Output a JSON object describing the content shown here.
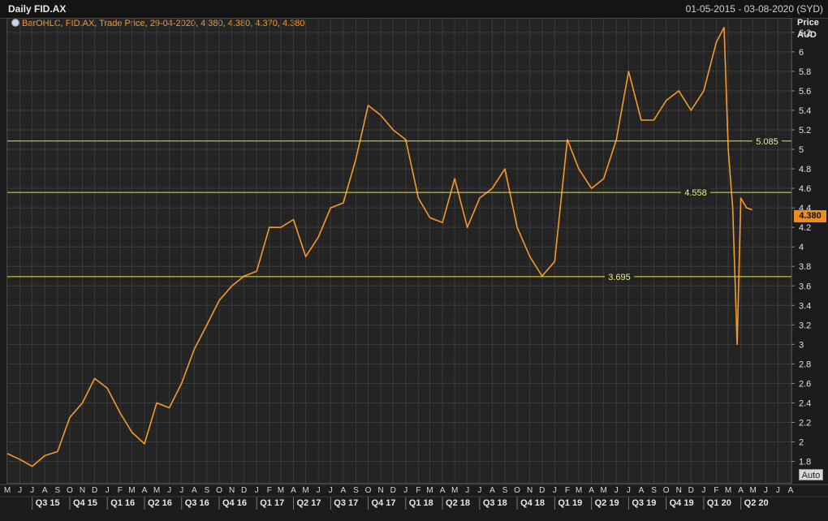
{
  "header": {
    "title": "Daily FID.AX",
    "date_range": "01-05-2015 - 03-08-2020 (SYD)"
  },
  "legend": {
    "text": "BarOHLC, FID.AX, Trade Price, 29-04-2020, 4.380, 4.380, 4.370, 4.380"
  },
  "axis": {
    "price_label": "Price",
    "currency_label": "AUD",
    "auto_label": "Auto",
    "last_value_label": "4.380"
  },
  "colors": {
    "price_line": "#f59a2a",
    "horizontal_lines": "#e8e23a",
    "grid": "#3a3a3a"
  },
  "chart_data": {
    "type": "line",
    "series": [
      {
        "name": "FID.AX",
        "x": [
          "2015-05-01",
          "2015-06-01",
          "2015-07-01",
          "2015-08-01",
          "2015-09-01",
          "2015-10-01",
          "2015-11-01",
          "2015-12-01",
          "2016-01-01",
          "2016-02-01",
          "2016-03-01",
          "2016-04-01",
          "2016-05-01",
          "2016-06-01",
          "2016-07-01",
          "2016-08-01",
          "2016-09-01",
          "2016-10-01",
          "2016-11-01",
          "2016-12-01",
          "2017-01-01",
          "2017-02-01",
          "2017-03-01",
          "2017-04-01",
          "2017-05-01",
          "2017-06-01",
          "2017-07-01",
          "2017-08-01",
          "2017-09-01",
          "2017-10-01",
          "2017-11-01",
          "2017-12-01",
          "2018-01-01",
          "2018-02-01",
          "2018-03-01",
          "2018-04-01",
          "2018-05-01",
          "2018-06-01",
          "2018-07-01",
          "2018-08-01",
          "2018-09-01",
          "2018-10-01",
          "2018-11-01",
          "2018-12-01",
          "2019-01-01",
          "2019-02-01",
          "2019-03-01",
          "2019-04-01",
          "2019-05-01",
          "2019-06-01",
          "2019-07-01",
          "2019-08-01",
          "2019-09-01",
          "2019-10-01",
          "2019-11-01",
          "2019-12-01",
          "2020-01-01",
          "2020-02-01",
          "2020-02-20",
          "2020-03-01",
          "2020-03-12",
          "2020-03-23",
          "2020-04-01",
          "2020-04-15",
          "2020-04-29"
        ],
        "values": [
          1.88,
          1.82,
          1.75,
          1.86,
          1.9,
          2.25,
          2.4,
          2.65,
          2.55,
          2.3,
          2.1,
          1.98,
          2.4,
          2.35,
          2.6,
          2.95,
          3.2,
          3.45,
          3.6,
          3.7,
          3.75,
          4.2,
          4.2,
          4.28,
          3.9,
          4.1,
          4.4,
          4.45,
          4.9,
          5.45,
          5.35,
          5.2,
          5.1,
          4.5,
          4.3,
          4.25,
          4.7,
          4.2,
          4.5,
          4.6,
          4.8,
          4.2,
          3.9,
          3.7,
          3.85,
          5.1,
          4.8,
          4.6,
          4.7,
          5.1,
          5.8,
          5.3,
          5.3,
          5.5,
          5.6,
          5.4,
          5.6,
          6.1,
          6.25,
          5.0,
          4.4,
          3.0,
          4.5,
          4.4,
          4.38
        ]
      }
    ],
    "x_range": [
      "2015-05-01",
      "2020-08-03"
    ],
    "ylim": [
      1.58,
      6.34
    ],
    "yticks": [
      1.8,
      2,
      2.2,
      2.4,
      2.6,
      2.8,
      3,
      3.2,
      3.4,
      3.6,
      3.8,
      4,
      4.2,
      4.4,
      4.6,
      4.8,
      5,
      5.2,
      5.4,
      5.6,
      5.8,
      6,
      6.2
    ],
    "month_labels": [
      "M",
      "J",
      "J",
      "A",
      "S",
      "O",
      "N",
      "D",
      "J",
      "F",
      "M",
      "A",
      "M",
      "J",
      "J",
      "A",
      "S",
      "O",
      "N",
      "D",
      "J",
      "F",
      "M",
      "A",
      "M",
      "J",
      "J",
      "A",
      "S",
      "O",
      "N",
      "D",
      "J",
      "F",
      "M",
      "A",
      "M",
      "J",
      "J",
      "A",
      "S",
      "O",
      "N",
      "D",
      "J",
      "F",
      "M",
      "A",
      "M",
      "J",
      "J",
      "A",
      "S",
      "O",
      "N",
      "D",
      "J",
      "F",
      "M",
      "A",
      "M",
      "J",
      "J",
      "A"
    ],
    "quarter_labels": [
      "Q3 15",
      "Q4 15",
      "Q1 16",
      "Q2 16",
      "Q3 16",
      "Q4 16",
      "Q1 17",
      "Q2 17",
      "Q3 17",
      "Q4 17",
      "Q1 18",
      "Q2 18",
      "Q3 18",
      "Q4 18",
      "Q1 19",
      "Q2 19",
      "Q3 19",
      "Q4 19",
      "Q1 20",
      "Q2 20"
    ],
    "horizontal_lines": [
      {
        "value": 5.085,
        "label": "5.085"
      },
      {
        "value": 4.558,
        "label": "4.558"
      },
      {
        "value": 3.695,
        "label": "3.695"
      }
    ],
    "grid": true
  }
}
